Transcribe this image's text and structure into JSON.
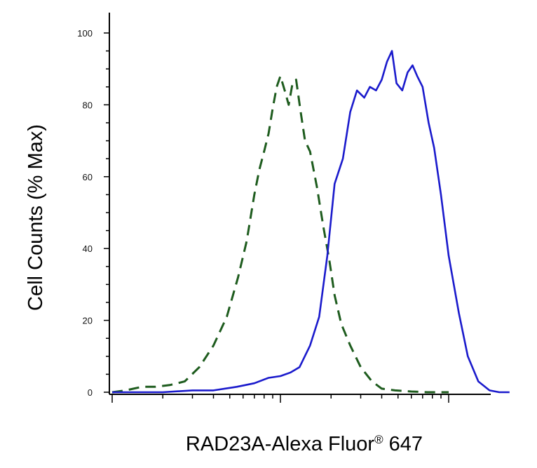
{
  "chart_data": {
    "type": "line",
    "title": "",
    "xlabel": "RAD23A-Alexa Fluor",
    "xlabel_mark": "®",
    "xlabel_suffix": " 647",
    "ylabel": "Cell Counts (% Max)",
    "x_scale": "log",
    "xlim": [
      1,
      1000
    ],
    "ylim": [
      0,
      100
    ],
    "y_ticks": [
      {
        "value": 0,
        "label": "0"
      },
      {
        "value": 20,
        "label": "20"
      },
      {
        "value": 40,
        "label": "40"
      },
      {
        "value": 60,
        "label": "60"
      },
      {
        "value": 80,
        "label": "80"
      },
      {
        "value": 100,
        "label": "100"
      }
    ],
    "x_major_ticks": [
      1,
      10,
      100
    ],
    "grid": false,
    "legend": "none",
    "series": [
      {
        "style": "dashed",
        "color": "#1e5c1e",
        "x": [
          1.0,
          1.2,
          1.5,
          1.8,
          2.2,
          2.7,
          3.3,
          4.0,
          4.8,
          5.6,
          6.3,
          7.0,
          7.5,
          8.0,
          8.5,
          9.0,
          9.5,
          10.0,
          10.6,
          11.2,
          11.8,
          12.4,
          13.2,
          14.0,
          15.0,
          16.5,
          18.0,
          19.5,
          21.0,
          23.0,
          26.0,
          30.0,
          35.0,
          40.0,
          48.0,
          60.0,
          75.0,
          100.0
        ],
        "y": [
          0,
          0.5,
          1.5,
          1.5,
          2,
          3,
          7,
          13,
          21,
          32,
          42,
          55,
          62,
          67,
          72,
          79,
          85,
          88,
          84,
          80,
          86,
          87,
          78,
          70,
          67,
          57,
          46,
          37,
          27,
          19,
          13,
          7,
          3,
          1,
          0.5,
          0.2,
          0,
          0
        ]
      },
      {
        "style": "solid",
        "color": "#1a1acc",
        "x": [
          1.0,
          2.0,
          3.0,
          4.0,
          5.5,
          7.0,
          8.5,
          10.0,
          11.5,
          13.0,
          15.0,
          17.0,
          19.0,
          21.0,
          23.5,
          26.0,
          28.5,
          31.5,
          34.0,
          37.0,
          40.0,
          43.0,
          46.0,
          49.0,
          53.0,
          57.0,
          61.0,
          65.0,
          70.0,
          76.0,
          82.0,
          90.0,
          100.0,
          115.0,
          130.0,
          150.0,
          175.0,
          200.0,
          230.0
        ],
        "y": [
          0,
          0,
          0.5,
          0.5,
          1.5,
          2.5,
          4,
          4.5,
          5.5,
          7,
          13,
          21,
          38,
          58,
          65,
          78,
          84,
          82,
          85,
          84,
          87,
          92,
          95,
          86,
          84,
          89,
          91,
          88,
          85,
          75,
          68,
          55,
          38,
          22,
          10,
          3,
          0.5,
          0,
          0
        ]
      }
    ]
  }
}
